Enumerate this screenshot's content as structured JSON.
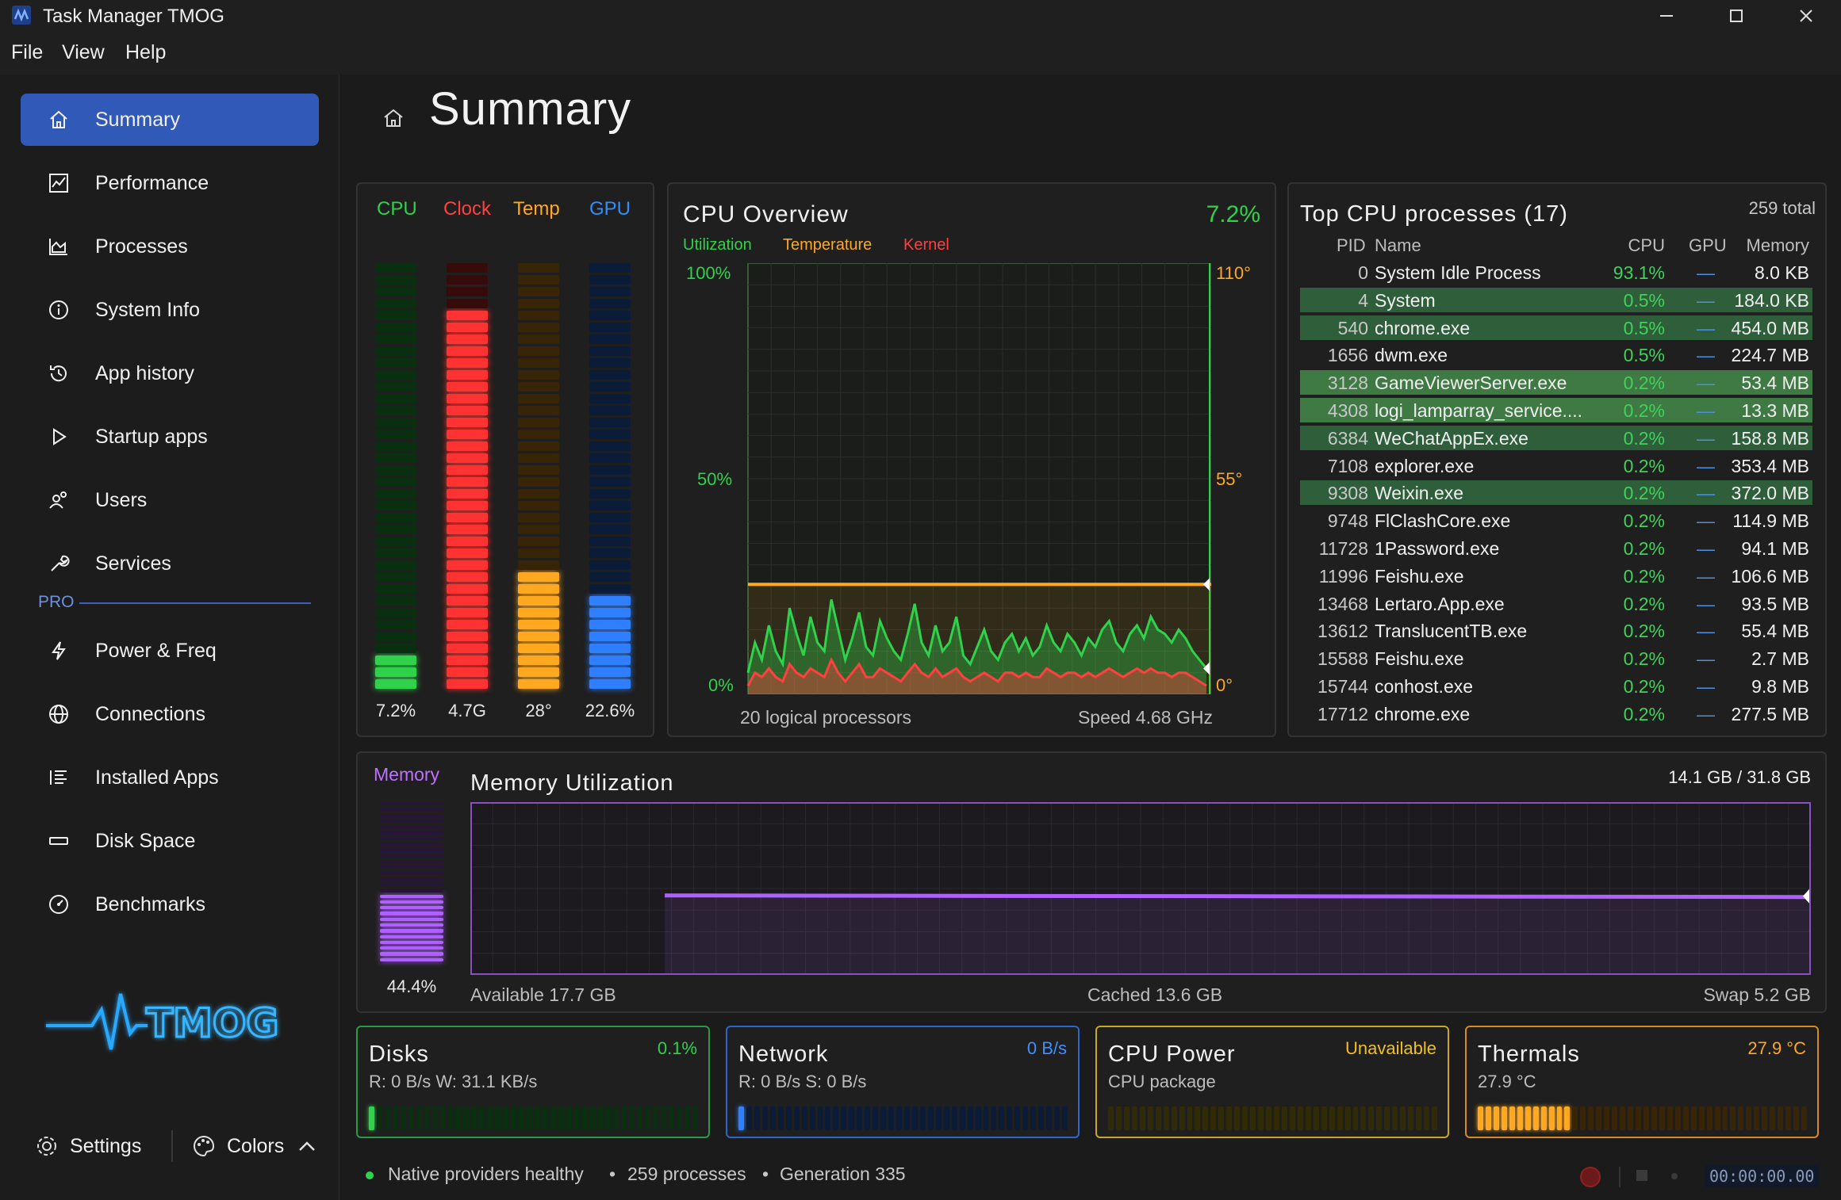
{
  "window": {
    "title": "Task Manager TMOG"
  },
  "menu": [
    "File",
    "View",
    "Help"
  ],
  "sidebar": {
    "items": [
      {
        "label": "Summary",
        "icon": "home-icon",
        "active": true
      },
      {
        "label": "Performance",
        "icon": "chart-icon"
      },
      {
        "label": "Processes",
        "icon": "processes-icon"
      },
      {
        "label": "System Info",
        "icon": "info-icon"
      },
      {
        "label": "App history",
        "icon": "history-icon"
      },
      {
        "label": "Startup apps",
        "icon": "play-icon"
      },
      {
        "label": "Users",
        "icon": "users-icon"
      },
      {
        "label": "Services",
        "icon": "wrench-icon"
      }
    ],
    "pro_label": "PRO",
    "pro_items": [
      {
        "label": "Power & Freq",
        "icon": "bolt-icon"
      },
      {
        "label": "Connections",
        "icon": "globe-icon"
      },
      {
        "label": "Installed Apps",
        "icon": "list-icon"
      },
      {
        "label": "Disk Space",
        "icon": "disk-icon"
      },
      {
        "label": "Benchmarks",
        "icon": "gauge-icon"
      }
    ],
    "logo_text": "TMOG",
    "settings_label": "Settings",
    "colors_label": "Colors"
  },
  "page": {
    "title": "Summary"
  },
  "bars": {
    "cpu": {
      "label": "CPU",
      "value": "7.2%",
      "level": 0.072,
      "color": "#2fd24a"
    },
    "clock": {
      "label": "Clock",
      "value": "4.7G",
      "level": 0.9,
      "color": "#ff3333"
    },
    "temp": {
      "label": "Temp",
      "value": "28°",
      "level": 0.28,
      "color": "#ffa820"
    },
    "gpu": {
      "label": "GPU",
      "value": "22.6%",
      "level": 0.226,
      "color": "#2f7fff"
    }
  },
  "cpu_overview": {
    "title": "CPU Overview",
    "value": "7.2%",
    "legend": {
      "utilization": "Utilization",
      "temperature": "Temperature",
      "kernel": "Kernel"
    },
    "y_left": [
      "100%",
      "50%",
      "0%"
    ],
    "y_right": [
      "110°",
      "55°",
      "0°"
    ],
    "footer_left": "20 logical processors",
    "footer_right": "Speed 4.68 GHz",
    "temperature_level": 0.255,
    "utilization": [
      0.05,
      0.12,
      0.08,
      0.16,
      0.1,
      0.07,
      0.2,
      0.14,
      0.09,
      0.18,
      0.12,
      0.1,
      0.22,
      0.15,
      0.08,
      0.13,
      0.19,
      0.11,
      0.09,
      0.17,
      0.13,
      0.1,
      0.08,
      0.14,
      0.21,
      0.12,
      0.09,
      0.16,
      0.1,
      0.12,
      0.18,
      0.09,
      0.07,
      0.11,
      0.15,
      0.1,
      0.08,
      0.12,
      0.14,
      0.1,
      0.13,
      0.09,
      0.11,
      0.16,
      0.12,
      0.1,
      0.14,
      0.12,
      0.09,
      0.13,
      0.11,
      0.15,
      0.17,
      0.12,
      0.1,
      0.14,
      0.16,
      0.13,
      0.18,
      0.15,
      0.14,
      0.12,
      0.15,
      0.13,
      0.1,
      0.08,
      0.06
    ],
    "kernel": [
      0.02,
      0.05,
      0.04,
      0.06,
      0.04,
      0.03,
      0.07,
      0.05,
      0.04,
      0.06,
      0.05,
      0.04,
      0.08,
      0.05,
      0.03,
      0.05,
      0.07,
      0.04,
      0.04,
      0.06,
      0.05,
      0.04,
      0.03,
      0.05,
      0.07,
      0.05,
      0.04,
      0.06,
      0.04,
      0.05,
      0.06,
      0.04,
      0.03,
      0.04,
      0.05,
      0.04,
      0.03,
      0.05,
      0.05,
      0.04,
      0.05,
      0.04,
      0.04,
      0.06,
      0.05,
      0.04,
      0.05,
      0.05,
      0.04,
      0.05,
      0.04,
      0.05,
      0.06,
      0.05,
      0.04,
      0.05,
      0.06,
      0.05,
      0.06,
      0.05,
      0.05,
      0.04,
      0.05,
      0.05,
      0.04,
      0.03,
      0.02
    ]
  },
  "top_processes": {
    "title": "Top CPU processes (17)",
    "total": "259 total",
    "headers": {
      "pid": "PID",
      "name": "Name",
      "cpu": "CPU",
      "gpu": "GPU",
      "memory": "Memory"
    },
    "rows": [
      {
        "pid": "0",
        "name": "System Idle Process",
        "cpu": "93.1%",
        "gpu": "—",
        "mem": "8.0 KB",
        "hl": ""
      },
      {
        "pid": "4",
        "name": "System",
        "cpu": "0.5%",
        "gpu": "—",
        "mem": "184.0 KB",
        "hl": "hl"
      },
      {
        "pid": "540",
        "name": "chrome.exe",
        "cpu": "0.5%",
        "gpu": "—",
        "mem": "454.0 MB",
        "hl": "hl"
      },
      {
        "pid": "1656",
        "name": "dwm.exe",
        "cpu": "0.5%",
        "gpu": "—",
        "mem": "224.7 MB",
        "hl": ""
      },
      {
        "pid": "3128",
        "name": "GameViewerServer.exe",
        "cpu": "0.2%",
        "gpu": "—",
        "mem": "53.4 MB",
        "hl": "hl2"
      },
      {
        "pid": "4308",
        "name": "logi_lamparray_service....",
        "cpu": "0.2%",
        "gpu": "—",
        "mem": "13.3 MB",
        "hl": "hl2"
      },
      {
        "pid": "6384",
        "name": "WeChatAppEx.exe",
        "cpu": "0.2%",
        "gpu": "—",
        "mem": "158.8 MB",
        "hl": "hl"
      },
      {
        "pid": "7108",
        "name": "explorer.exe",
        "cpu": "0.2%",
        "gpu": "—",
        "mem": "353.4 MB",
        "hl": ""
      },
      {
        "pid": "9308",
        "name": "Weixin.exe",
        "cpu": "0.2%",
        "gpu": "—",
        "mem": "372.0 MB",
        "hl": "hl"
      },
      {
        "pid": "9748",
        "name": "FlClashCore.exe",
        "cpu": "0.2%",
        "gpu": "—",
        "mem": "114.9 MB",
        "hl": ""
      },
      {
        "pid": "11728",
        "name": "1Password.exe",
        "cpu": "0.2%",
        "gpu": "—",
        "mem": "94.1 MB",
        "hl": ""
      },
      {
        "pid": "11996",
        "name": "Feishu.exe",
        "cpu": "0.2%",
        "gpu": "—",
        "mem": "106.6 MB",
        "hl": ""
      },
      {
        "pid": "13468",
        "name": "Lertaro.App.exe",
        "cpu": "0.2%",
        "gpu": "—",
        "mem": "93.5 MB",
        "hl": ""
      },
      {
        "pid": "13612",
        "name": "TranslucentTB.exe",
        "cpu": "0.2%",
        "gpu": "—",
        "mem": "55.4 MB",
        "hl": ""
      },
      {
        "pid": "15588",
        "name": "Feishu.exe",
        "cpu": "0.2%",
        "gpu": "—",
        "mem": "2.7 MB",
        "hl": ""
      },
      {
        "pid": "15744",
        "name": "conhost.exe",
        "cpu": "0.2%",
        "gpu": "—",
        "mem": "9.8 MB",
        "hl": ""
      },
      {
        "pid": "17712",
        "name": "chrome.exe",
        "cpu": "0.2%",
        "gpu": "—",
        "mem": "277.5 MB",
        "hl": ""
      }
    ]
  },
  "memory": {
    "label": "Memory",
    "title": "Memory Utilization",
    "usage": "14.1 GB / 31.8 GB",
    "percent": "44.4%",
    "level": 0.444,
    "available": "Available 17.7 GB",
    "cached": "Cached 13.6 GB",
    "swap": "Swap 5.2 GB",
    "history_start": 0.145,
    "history_level": 0.46
  },
  "cards": {
    "disks": {
      "title": "Disks",
      "value": "0.1%",
      "sub": "R: 0 B/s  W: 31.1 KB/s",
      "level": 0.01,
      "color": "#2fd24a"
    },
    "network": {
      "title": "Network",
      "value": "0 B/s",
      "sub": "R: 0 B/s  S: 0 B/s",
      "level": 0.01,
      "color": "#2f7fff"
    },
    "cpu_power": {
      "title": "CPU Power",
      "value": "Unavailable",
      "sub": "CPU package",
      "level": 0,
      "color": "#e0c020"
    },
    "thermals": {
      "title": "Thermals",
      "value": "27.9 °C",
      "sub": "27.9 °C",
      "level": 0.28,
      "color": "#ffa820"
    }
  },
  "status": {
    "text1": "Native providers healthy",
    "text2": "259 processes",
    "text3": "Generation 335",
    "timer": "00:00:00.00"
  }
}
